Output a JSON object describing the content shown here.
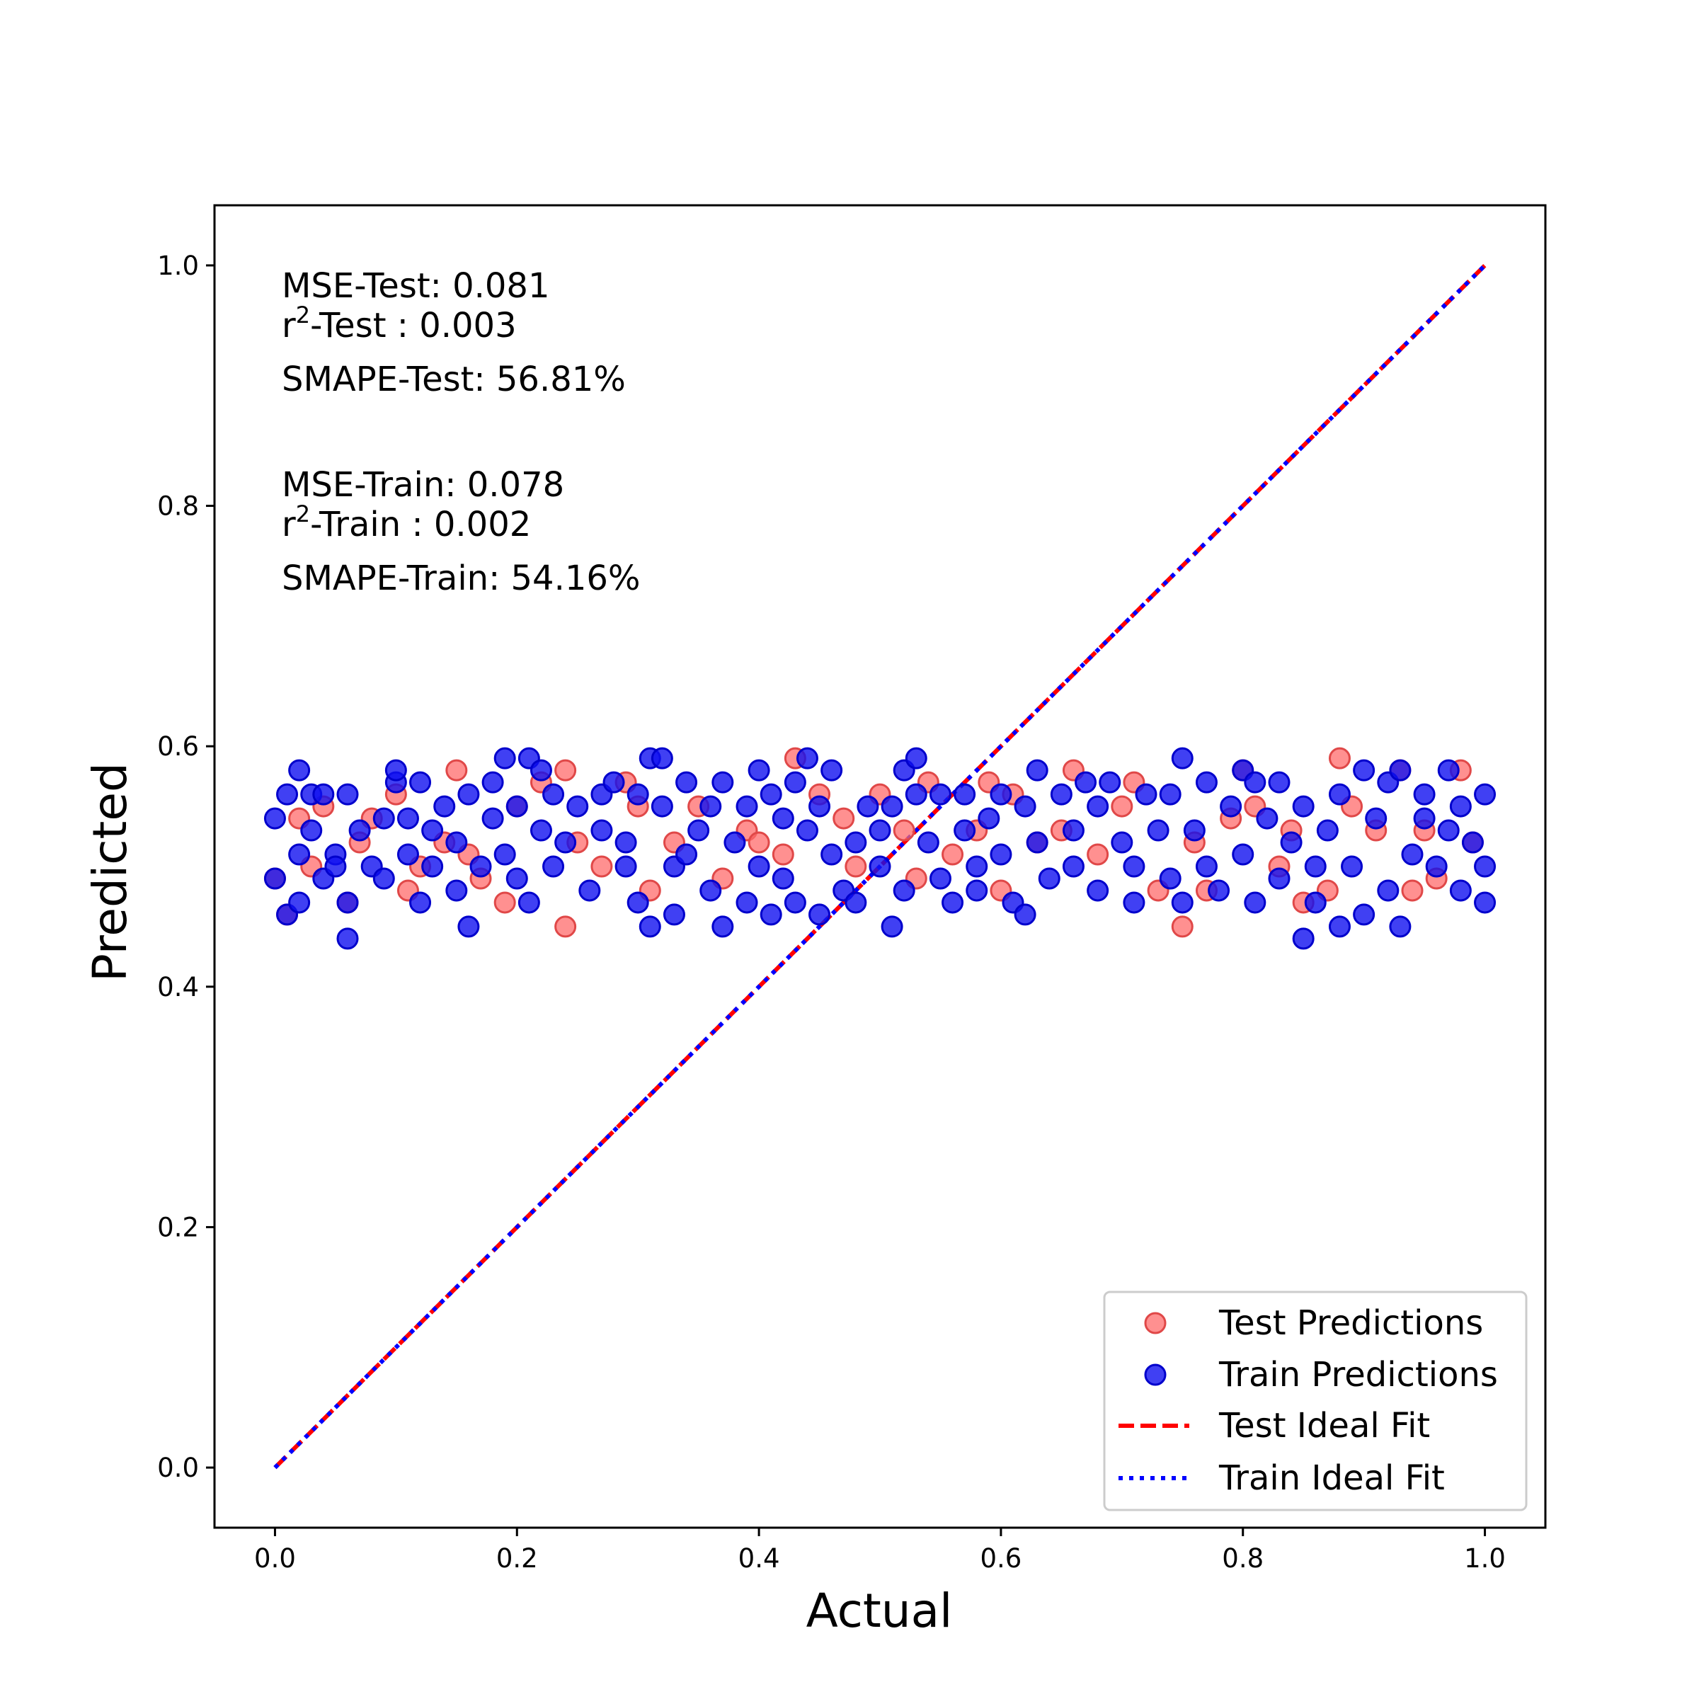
{
  "chart_data": {
    "type": "scatter",
    "xlabel": "Actual",
    "ylabel": "Predicted",
    "xlim": [
      -0.05,
      1.05
    ],
    "ylim": [
      -0.05,
      1.05
    ],
    "x_ticks": [
      "0.0",
      "0.2",
      "0.4",
      "0.6",
      "0.8",
      "1.0"
    ],
    "y_ticks": [
      "0.0",
      "0.2",
      "0.4",
      "0.6",
      "0.8",
      "1.0"
    ],
    "grid": false,
    "legend_position": "lower-right",
    "metrics": {
      "test_mse": "MSE-Test: 0.081",
      "test_r2_base": "r",
      "test_r2_sup": "2",
      "test_r2_rest": "-Test : 0.003",
      "test_smape": "SMAPE-Test: 56.81%",
      "train_mse": "MSE-Train: 0.078",
      "train_r2_base": "r",
      "train_r2_sup": "2",
      "train_r2_rest": "-Train : 0.002",
      "train_smape": "SMAPE-Train: 54.16%"
    },
    "series": [
      {
        "name": "Test Predictions",
        "kind": "scatter",
        "color": "#ff6b6b",
        "points": [
          [
            0.0,
            0.49
          ],
          [
            0.01,
            0.46
          ],
          [
            0.02,
            0.54
          ],
          [
            0.03,
            0.5
          ],
          [
            0.04,
            0.55
          ],
          [
            0.06,
            0.47
          ],
          [
            0.07,
            0.52
          ],
          [
            0.08,
            0.54
          ],
          [
            0.1,
            0.56
          ],
          [
            0.11,
            0.48
          ],
          [
            0.12,
            0.5
          ],
          [
            0.14,
            0.52
          ],
          [
            0.15,
            0.58
          ],
          [
            0.16,
            0.51
          ],
          [
            0.17,
            0.49
          ],
          [
            0.19,
            0.47
          ],
          [
            0.2,
            0.55
          ],
          [
            0.22,
            0.57
          ],
          [
            0.24,
            0.45
          ],
          [
            0.24,
            0.58
          ],
          [
            0.25,
            0.52
          ],
          [
            0.27,
            0.5
          ],
          [
            0.29,
            0.57
          ],
          [
            0.3,
            0.55
          ],
          [
            0.31,
            0.48
          ],
          [
            0.33,
            0.52
          ],
          [
            0.35,
            0.55
          ],
          [
            0.37,
            0.49
          ],
          [
            0.39,
            0.53
          ],
          [
            0.4,
            0.52
          ],
          [
            0.42,
            0.51
          ],
          [
            0.43,
            0.59
          ],
          [
            0.45,
            0.56
          ],
          [
            0.47,
            0.54
          ],
          [
            0.48,
            0.5
          ],
          [
            0.5,
            0.56
          ],
          [
            0.52,
            0.53
          ],
          [
            0.53,
            0.49
          ],
          [
            0.54,
            0.57
          ],
          [
            0.56,
            0.51
          ],
          [
            0.58,
            0.53
          ],
          [
            0.59,
            0.57
          ],
          [
            0.6,
            0.48
          ],
          [
            0.61,
            0.56
          ],
          [
            0.63,
            0.52
          ],
          [
            0.65,
            0.53
          ],
          [
            0.66,
            0.58
          ],
          [
            0.68,
            0.51
          ],
          [
            0.7,
            0.55
          ],
          [
            0.71,
            0.57
          ],
          [
            0.73,
            0.48
          ],
          [
            0.75,
            0.45
          ],
          [
            0.76,
            0.52
          ],
          [
            0.77,
            0.48
          ],
          [
            0.79,
            0.54
          ],
          [
            0.8,
            0.58
          ],
          [
            0.81,
            0.55
          ],
          [
            0.83,
            0.5
          ],
          [
            0.84,
            0.53
          ],
          [
            0.85,
            0.47
          ],
          [
            0.87,
            0.48
          ],
          [
            0.88,
            0.59
          ],
          [
            0.89,
            0.55
          ],
          [
            0.91,
            0.53
          ],
          [
            0.93,
            0.58
          ],
          [
            0.94,
            0.48
          ],
          [
            0.95,
            0.53
          ],
          [
            0.96,
            0.49
          ],
          [
            0.98,
            0.58
          ],
          [
            0.99,
            0.52
          ]
        ]
      },
      {
        "name": "Train Predictions",
        "kind": "scatter",
        "color": "#1010f0",
        "points": [
          [
            0.0,
            0.49
          ],
          [
            0.0,
            0.54
          ],
          [
            0.01,
            0.46
          ],
          [
            0.01,
            0.56
          ],
          [
            0.02,
            0.47
          ],
          [
            0.02,
            0.58
          ],
          [
            0.02,
            0.51
          ],
          [
            0.03,
            0.53
          ],
          [
            0.03,
            0.56
          ],
          [
            0.04,
            0.49
          ],
          [
            0.04,
            0.56
          ],
          [
            0.05,
            0.51
          ],
          [
            0.05,
            0.5
          ],
          [
            0.06,
            0.44
          ],
          [
            0.06,
            0.47
          ],
          [
            0.06,
            0.56
          ],
          [
            0.07,
            0.53
          ],
          [
            0.08,
            0.5
          ],
          [
            0.09,
            0.54
          ],
          [
            0.09,
            0.49
          ],
          [
            0.1,
            0.57
          ],
          [
            0.1,
            0.58
          ],
          [
            0.11,
            0.54
          ],
          [
            0.11,
            0.51
          ],
          [
            0.12,
            0.47
          ],
          [
            0.12,
            0.57
          ],
          [
            0.13,
            0.5
          ],
          [
            0.13,
            0.53
          ],
          [
            0.14,
            0.55
          ],
          [
            0.15,
            0.48
          ],
          [
            0.15,
            0.52
          ],
          [
            0.16,
            0.56
          ],
          [
            0.16,
            0.45
          ],
          [
            0.17,
            0.5
          ],
          [
            0.18,
            0.54
          ],
          [
            0.18,
            0.57
          ],
          [
            0.19,
            0.59
          ],
          [
            0.19,
            0.51
          ],
          [
            0.2,
            0.49
          ],
          [
            0.2,
            0.55
          ],
          [
            0.21,
            0.47
          ],
          [
            0.21,
            0.59
          ],
          [
            0.22,
            0.53
          ],
          [
            0.22,
            0.58
          ],
          [
            0.23,
            0.5
          ],
          [
            0.23,
            0.56
          ],
          [
            0.24,
            0.52
          ],
          [
            0.25,
            0.55
          ],
          [
            0.26,
            0.48
          ],
          [
            0.27,
            0.53
          ],
          [
            0.27,
            0.56
          ],
          [
            0.28,
            0.57
          ],
          [
            0.29,
            0.5
          ],
          [
            0.29,
            0.52
          ],
          [
            0.3,
            0.47
          ],
          [
            0.3,
            0.56
          ],
          [
            0.31,
            0.45
          ],
          [
            0.31,
            0.59
          ],
          [
            0.32,
            0.55
          ],
          [
            0.32,
            0.59
          ],
          [
            0.33,
            0.5
          ],
          [
            0.33,
            0.46
          ],
          [
            0.34,
            0.57
          ],
          [
            0.34,
            0.51
          ],
          [
            0.35,
            0.53
          ],
          [
            0.36,
            0.48
          ],
          [
            0.36,
            0.55
          ],
          [
            0.37,
            0.57
          ],
          [
            0.37,
            0.45
          ],
          [
            0.38,
            0.52
          ],
          [
            0.39,
            0.47
          ],
          [
            0.39,
            0.55
          ],
          [
            0.4,
            0.58
          ],
          [
            0.4,
            0.5
          ],
          [
            0.41,
            0.56
          ],
          [
            0.41,
            0.46
          ],
          [
            0.42,
            0.49
          ],
          [
            0.42,
            0.54
          ],
          [
            0.43,
            0.47
          ],
          [
            0.43,
            0.57
          ],
          [
            0.44,
            0.53
          ],
          [
            0.44,
            0.59
          ],
          [
            0.45,
            0.55
          ],
          [
            0.45,
            0.46
          ],
          [
            0.46,
            0.51
          ],
          [
            0.46,
            0.58
          ],
          [
            0.47,
            0.48
          ],
          [
            0.48,
            0.52
          ],
          [
            0.48,
            0.47
          ],
          [
            0.49,
            0.55
          ],
          [
            0.5,
            0.5
          ],
          [
            0.5,
            0.53
          ],
          [
            0.51,
            0.45
          ],
          [
            0.51,
            0.55
          ],
          [
            0.52,
            0.58
          ],
          [
            0.52,
            0.48
          ],
          [
            0.53,
            0.56
          ],
          [
            0.53,
            0.59
          ],
          [
            0.54,
            0.52
          ],
          [
            0.55,
            0.49
          ],
          [
            0.55,
            0.56
          ],
          [
            0.56,
            0.47
          ],
          [
            0.57,
            0.53
          ],
          [
            0.57,
            0.56
          ],
          [
            0.58,
            0.5
          ],
          [
            0.58,
            0.48
          ],
          [
            0.59,
            0.54
          ],
          [
            0.6,
            0.56
          ],
          [
            0.6,
            0.51
          ],
          [
            0.61,
            0.47
          ],
          [
            0.62,
            0.46
          ],
          [
            0.62,
            0.55
          ],
          [
            0.63,
            0.58
          ],
          [
            0.63,
            0.52
          ],
          [
            0.64,
            0.49
          ],
          [
            0.65,
            0.56
          ],
          [
            0.66,
            0.5
          ],
          [
            0.66,
            0.53
          ],
          [
            0.67,
            0.57
          ],
          [
            0.68,
            0.55
          ],
          [
            0.68,
            0.48
          ],
          [
            0.69,
            0.57
          ],
          [
            0.7,
            0.52
          ],
          [
            0.71,
            0.47
          ],
          [
            0.71,
            0.5
          ],
          [
            0.72,
            0.56
          ],
          [
            0.73,
            0.53
          ],
          [
            0.74,
            0.49
          ],
          [
            0.74,
            0.56
          ],
          [
            0.75,
            0.59
          ],
          [
            0.75,
            0.47
          ],
          [
            0.76,
            0.53
          ],
          [
            0.77,
            0.57
          ],
          [
            0.77,
            0.5
          ],
          [
            0.78,
            0.48
          ],
          [
            0.79,
            0.55
          ],
          [
            0.8,
            0.58
          ],
          [
            0.8,
            0.51
          ],
          [
            0.81,
            0.47
          ],
          [
            0.81,
            0.57
          ],
          [
            0.82,
            0.54
          ],
          [
            0.83,
            0.49
          ],
          [
            0.83,
            0.57
          ],
          [
            0.84,
            0.52
          ],
          [
            0.85,
            0.44
          ],
          [
            0.85,
            0.55
          ],
          [
            0.86,
            0.47
          ],
          [
            0.86,
            0.5
          ],
          [
            0.87,
            0.53
          ],
          [
            0.88,
            0.45
          ],
          [
            0.88,
            0.56
          ],
          [
            0.89,
            0.5
          ],
          [
            0.9,
            0.58
          ],
          [
            0.9,
            0.46
          ],
          [
            0.91,
            0.54
          ],
          [
            0.92,
            0.57
          ],
          [
            0.92,
            0.48
          ],
          [
            0.93,
            0.45
          ],
          [
            0.93,
            0.58
          ],
          [
            0.94,
            0.51
          ],
          [
            0.95,
            0.56
          ],
          [
            0.95,
            0.54
          ],
          [
            0.96,
            0.5
          ],
          [
            0.97,
            0.58
          ],
          [
            0.97,
            0.53
          ],
          [
            0.98,
            0.48
          ],
          [
            0.98,
            0.55
          ],
          [
            0.99,
            0.52
          ],
          [
            1.0,
            0.47
          ],
          [
            1.0,
            0.5
          ],
          [
            1.0,
            0.56
          ]
        ]
      },
      {
        "name": "Test Ideal Fit",
        "kind": "line",
        "style": "dashed",
        "color": "#ff0000",
        "points": [
          [
            0.0,
            0.0
          ],
          [
            1.0,
            1.0
          ]
        ]
      },
      {
        "name": "Train Ideal Fit",
        "kind": "line",
        "style": "dotted",
        "color": "#0000ff",
        "points": [
          [
            0.0,
            0.0
          ],
          [
            1.0,
            1.0
          ]
        ]
      }
    ]
  }
}
